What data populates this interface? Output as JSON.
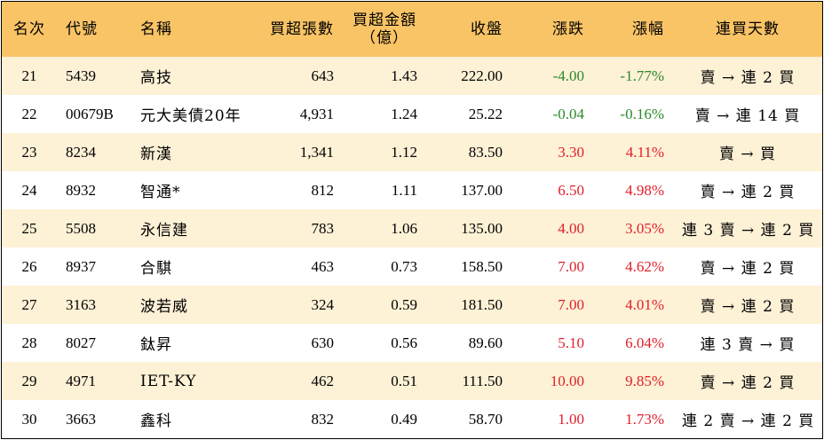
{
  "headers": {
    "rank": "名次",
    "code": "代號",
    "name": "名稱",
    "net_buy_lots": "買超張數",
    "net_buy_amount_line1": "買超金額",
    "net_buy_amount_line2": "（億）",
    "close": "收盤",
    "change": "漲跌",
    "change_pct": "漲幅",
    "streak": "連買天數"
  },
  "colors": {
    "header_bg": "#f9c466",
    "stripe_bg": "#fdf1d6",
    "up": "#e0202a",
    "down": "#2a8a2a"
  },
  "rows": [
    {
      "rank": "21",
      "code": "5439",
      "name": "高技",
      "lots": "643",
      "amount": "1.43",
      "close": "222.00",
      "change": "-4.00",
      "pct": "-1.77%",
      "dir": "down",
      "streak": "賣 → 連 2 買"
    },
    {
      "rank": "22",
      "code": "00679B",
      "name": "元大美債20年",
      "lots": "4,931",
      "amount": "1.24",
      "close": "25.22",
      "change": "-0.04",
      "pct": "-0.16%",
      "dir": "down",
      "streak": "賣 → 連 14 買"
    },
    {
      "rank": "23",
      "code": "8234",
      "name": "新漢",
      "lots": "1,341",
      "amount": "1.12",
      "close": "83.50",
      "change": "3.30",
      "pct": "4.11%",
      "dir": "up",
      "streak": "賣 → 買"
    },
    {
      "rank": "24",
      "code": "8932",
      "name": "智通*",
      "lots": "812",
      "amount": "1.11",
      "close": "137.00",
      "change": "6.50",
      "pct": "4.98%",
      "dir": "up",
      "streak": "賣 → 連 2 買"
    },
    {
      "rank": "25",
      "code": "5508",
      "name": "永信建",
      "lots": "783",
      "amount": "1.06",
      "close": "135.00",
      "change": "4.00",
      "pct": "3.05%",
      "dir": "up",
      "streak": "連 3 賣 → 連 2 買"
    },
    {
      "rank": "26",
      "code": "8937",
      "name": "合騏",
      "lots": "463",
      "amount": "0.73",
      "close": "158.50",
      "change": "7.00",
      "pct": "4.62%",
      "dir": "up",
      "streak": "賣 → 連 2 買"
    },
    {
      "rank": "27",
      "code": "3163",
      "name": "波若威",
      "lots": "324",
      "amount": "0.59",
      "close": "181.50",
      "change": "7.00",
      "pct": "4.01%",
      "dir": "up",
      "streak": "賣 → 連 2 買"
    },
    {
      "rank": "28",
      "code": "8027",
      "name": "鈦昇",
      "lots": "630",
      "amount": "0.56",
      "close": "89.60",
      "change": "5.10",
      "pct": "6.04%",
      "dir": "up",
      "streak": "連 3 賣 → 買"
    },
    {
      "rank": "29",
      "code": "4971",
      "name": "IET-KY",
      "lots": "462",
      "amount": "0.51",
      "close": "111.50",
      "change": "10.00",
      "pct": "9.85%",
      "dir": "up",
      "streak": "賣 → 連 2 買"
    },
    {
      "rank": "30",
      "code": "3663",
      "name": "鑫科",
      "lots": "832",
      "amount": "0.49",
      "close": "58.70",
      "change": "1.00",
      "pct": "1.73%",
      "dir": "up",
      "streak": "連 2 賣 → 連 2 買"
    }
  ]
}
